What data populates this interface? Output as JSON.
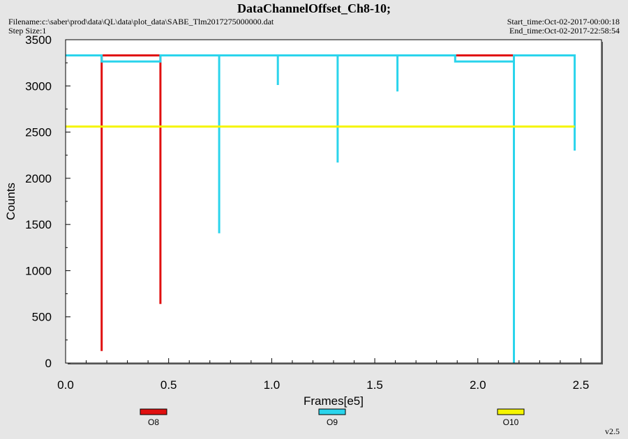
{
  "header": {
    "title": "DataChannelOffset_Ch8-10;",
    "filename": "Filename:c:\\saber\\prod\\data\\QL\\data\\plot_data\\SABE_Tlm2017275000000.dat",
    "step_size": "Step Size:1",
    "start_time": "Start_time:Oct-02-2017-00:00:18",
    "end_time": "End_time:Oct-02-2017-22:58:54"
  },
  "footer": {
    "version": "v2.5"
  },
  "chart_data": {
    "type": "line",
    "xlabel": "Frames[e5]",
    "ylabel": "Counts",
    "xlim": [
      0,
      2.6
    ],
    "ylim": [
      0,
      3500
    ],
    "xticks": [
      "0.0",
      "0.5",
      "1.0",
      "1.5",
      "2.0",
      "2.5"
    ],
    "yticks": [
      "0",
      "500",
      "1000",
      "1500",
      "2000",
      "2500",
      "3000",
      "3500"
    ],
    "x_tick_values": [
      0,
      0.5,
      1.0,
      1.5,
      2.0,
      2.5
    ],
    "y_tick_values": [
      0,
      500,
      1000,
      1500,
      2000,
      2500,
      3000,
      3500
    ],
    "grid": false,
    "legend_position": "bottom",
    "series": [
      {
        "name": "O8",
        "color": "#e01010",
        "points": [
          [
            0.175,
            3330
          ],
          [
            0.175,
            130
          ],
          [
            0.175,
            3330
          ],
          [
            0.46,
            3330
          ],
          [
            0.46,
            640
          ],
          [
            0.46,
            3330
          ],
          [
            1.89,
            3330
          ],
          [
            2.175,
            3330
          ]
        ]
      },
      {
        "name": "O9",
        "color": "#2ad4ec",
        "points": [
          [
            0.0,
            3330
          ],
          [
            0.175,
            3330
          ],
          [
            0.175,
            3265
          ],
          [
            0.46,
            3265
          ],
          [
            0.46,
            3330
          ],
          [
            0.745,
            3330
          ],
          [
            0.745,
            1405
          ],
          [
            0.745,
            3330
          ],
          [
            1.03,
            3330
          ],
          [
            1.03,
            3010
          ],
          [
            1.03,
            3330
          ],
          [
            1.32,
            3330
          ],
          [
            1.32,
            2170
          ],
          [
            1.32,
            3330
          ],
          [
            1.61,
            3330
          ],
          [
            1.61,
            2940
          ],
          [
            1.61,
            3330
          ],
          [
            1.89,
            3330
          ],
          [
            1.89,
            3265
          ],
          [
            2.175,
            3265
          ],
          [
            2.175,
            0
          ],
          [
            2.175,
            3330
          ],
          [
            2.47,
            3330
          ],
          [
            2.47,
            2300
          ]
        ]
      },
      {
        "name": "O10",
        "color": "#f5f500",
        "points": [
          [
            0.0,
            2560
          ],
          [
            2.47,
            2560
          ]
        ]
      }
    ]
  }
}
